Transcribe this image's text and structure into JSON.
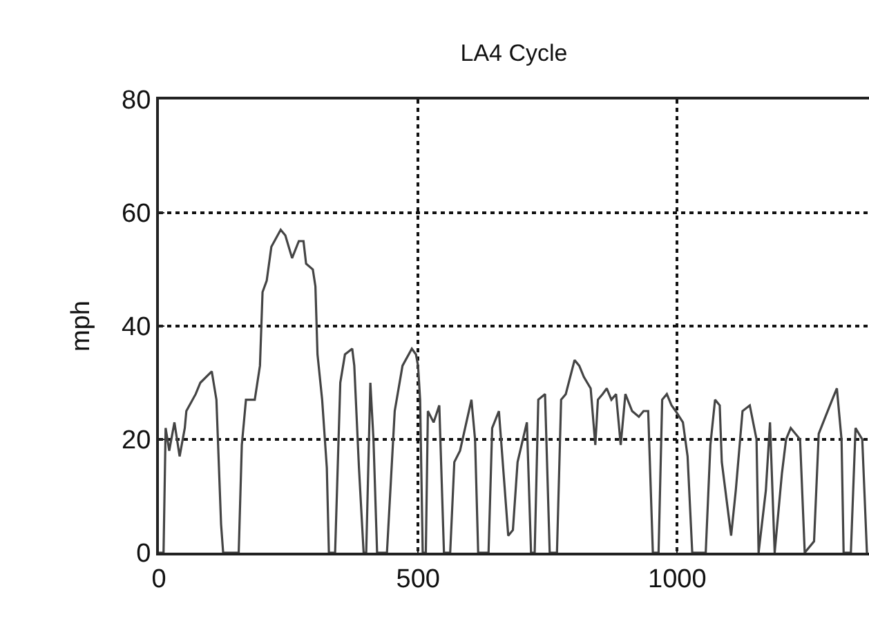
{
  "chart_data": {
    "type": "line",
    "title": "LA4 Cycle",
    "ylabel": "mph",
    "x": [
      0,
      9,
      13,
      20,
      30,
      40,
      50,
      53,
      71,
      80,
      102,
      111,
      120,
      124,
      154,
      160,
      168,
      185,
      195,
      200,
      208,
      217,
      235,
      244,
      257,
      270,
      279,
      284,
      297,
      302,
      306,
      315,
      324,
      328,
      340,
      350,
      359,
      373,
      377,
      386,
      395,
      400,
      408,
      414,
      421,
      440,
      455,
      470,
      488,
      496,
      500,
      504,
      509,
      515,
      519,
      530,
      541,
      550,
      562,
      570,
      581,
      603,
      610,
      616,
      636,
      643,
      656,
      665,
      674,
      683,
      692,
      710,
      718,
      725,
      732,
      745,
      754,
      768,
      776,
      785,
      802,
      811,
      820,
      833,
      842,
      847,
      856,
      864,
      873,
      882,
      891,
      900,
      913,
      926,
      935,
      944,
      953,
      964,
      971,
      980,
      989,
      997,
      1011,
      1020,
      1029,
      1055,
      1064,
      1073,
      1082,
      1086,
      1104,
      1113,
      1126,
      1140,
      1153,
      1157,
      1171,
      1179,
      1188,
      1202,
      1210,
      1219,
      1237,
      1246,
      1264,
      1273,
      1286,
      1299,
      1308,
      1317,
      1321,
      1335,
      1344,
      1357,
      1366
    ],
    "series": [
      {
        "color": "#444444",
        "values": [
          0,
          0,
          22,
          18,
          23,
          17,
          22,
          25,
          28,
          30,
          32,
          27,
          5,
          0,
          0,
          19,
          27,
          27,
          33,
          46,
          48,
          54,
          57,
          56,
          52,
          55,
          55,
          51,
          50,
          47,
          35,
          27,
          15,
          0,
          0,
          30,
          35,
          36,
          33,
          15,
          0,
          0,
          30,
          20,
          0,
          0,
          25,
          33,
          36,
          35,
          33,
          27,
          0,
          0,
          25,
          23,
          26,
          0,
          0,
          16,
          18,
          27,
          20,
          0,
          0,
          22,
          25,
          14,
          3,
          4,
          16,
          23,
          0,
          0,
          27,
          28,
          0,
          0,
          27,
          28,
          34,
          33,
          31,
          29,
          19,
          27,
          28,
          29,
          27,
          28,
          19,
          28,
          25,
          24,
          25,
          25,
          0,
          0,
          27,
          28,
          26,
          25,
          23,
          17,
          0,
          0,
          19,
          27,
          26,
          16,
          3,
          11,
          25,
          26,
          20,
          0,
          11,
          23,
          0,
          14,
          20,
          22,
          20,
          0,
          2,
          21,
          24,
          27,
          29,
          20,
          0,
          0,
          22,
          20,
          0
        ]
      }
    ],
    "xlim": [
      0,
      1370
    ],
    "xticks": [
      0,
      500,
      1000
    ],
    "ylim": [
      0,
      80
    ],
    "yticks": [
      0,
      20,
      40,
      60,
      80
    ],
    "grid": true,
    "marker": "none",
    "line_style": "solid"
  }
}
